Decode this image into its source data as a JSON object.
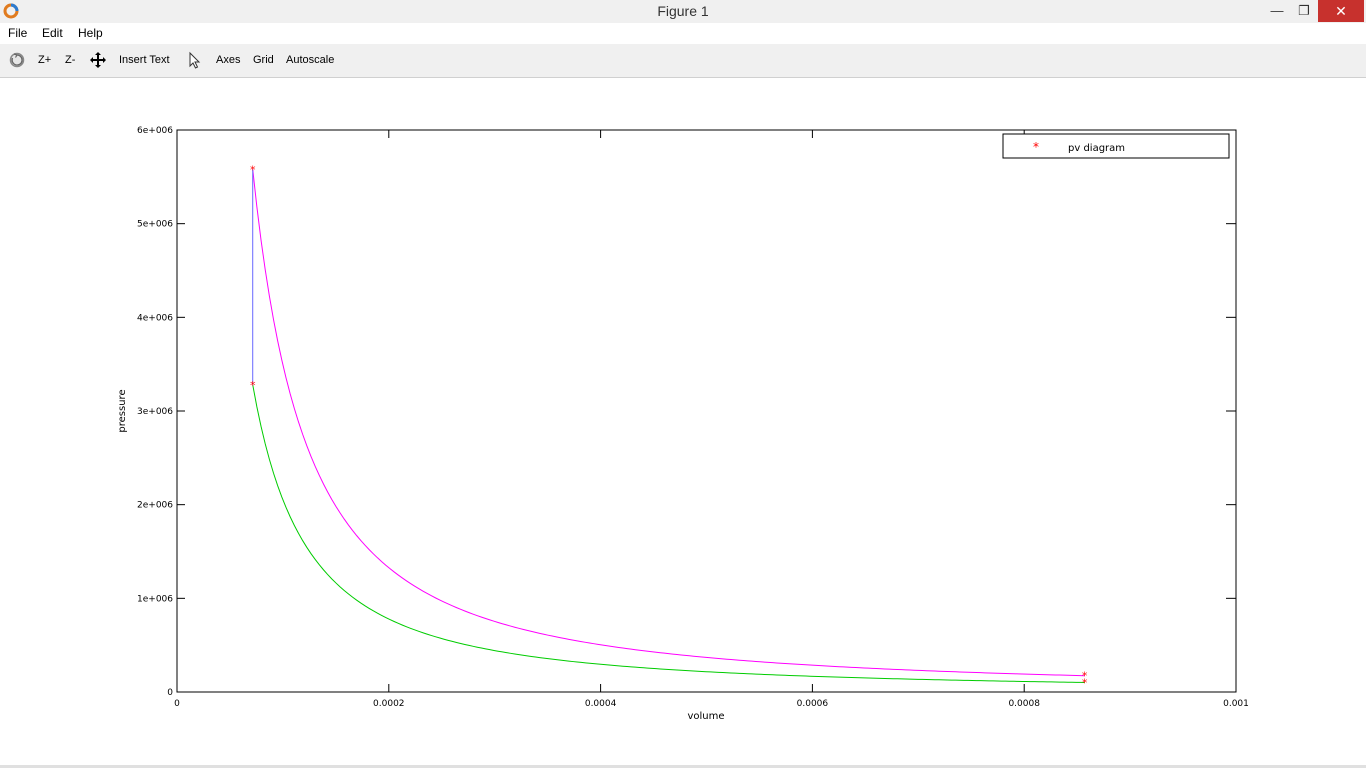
{
  "window": {
    "title": "Figure 1",
    "minimize": "—",
    "maximize": "❐",
    "close": "✕"
  },
  "menu": {
    "items": [
      "File",
      "Edit",
      "Help"
    ]
  },
  "toolbar": {
    "zoom_in": "Z+",
    "zoom_out": "Z-",
    "insert_text": "Insert Text",
    "axes": "Axes",
    "grid": "Grid",
    "autoscale": "Autoscale"
  },
  "chart_data": {
    "type": "line",
    "xlabel": "volume",
    "ylabel": "pressure",
    "xlim": [
      0,
      0.001
    ],
    "ylim": [
      0,
      6000000
    ],
    "xticks": [
      0,
      0.0002,
      0.0004,
      0.0006,
      0.0008,
      0.001
    ],
    "xtick_labels": [
      "0",
      "0.0002",
      "0.0004",
      "0.0006",
      "0.0008",
      "0.001"
    ],
    "yticks": [
      0,
      1000000,
      2000000,
      3000000,
      4000000,
      5000000,
      6000000
    ],
    "ytick_labels": [
      "0",
      "1e+006",
      "2e+006",
      "3e+006",
      "4e+006",
      "5e+006",
      "6e+006"
    ],
    "grid": false,
    "legend": {
      "position": "top-right",
      "entries": [
        {
          "label": "pv diagram",
          "marker": "*",
          "color": "#ff0000"
        }
      ]
    },
    "series": [
      {
        "color": "#ff00ff",
        "kind": "expansion",
        "v_start": 7.15e-05,
        "v_end": 0.000857,
        "p_start": 5580000,
        "p_end": 174000
      },
      {
        "color": "#00cc00",
        "kind": "compression",
        "v_start": 7.15e-05,
        "v_end": 0.000857,
        "p_start": 3280000,
        "p_end": 102000
      },
      {
        "color": "#6666ff",
        "kind": "isochoric",
        "x": [
          7.15e-05,
          7.15e-05
        ],
        "y": [
          3280000,
          5580000
        ]
      }
    ],
    "points": [
      {
        "x": 7.15e-05,
        "y": 5580000
      },
      {
        "x": 7.15e-05,
        "y": 3280000
      },
      {
        "x": 0.000857,
        "y": 174000
      },
      {
        "x": 0.000857,
        "y": 102000
      }
    ]
  }
}
